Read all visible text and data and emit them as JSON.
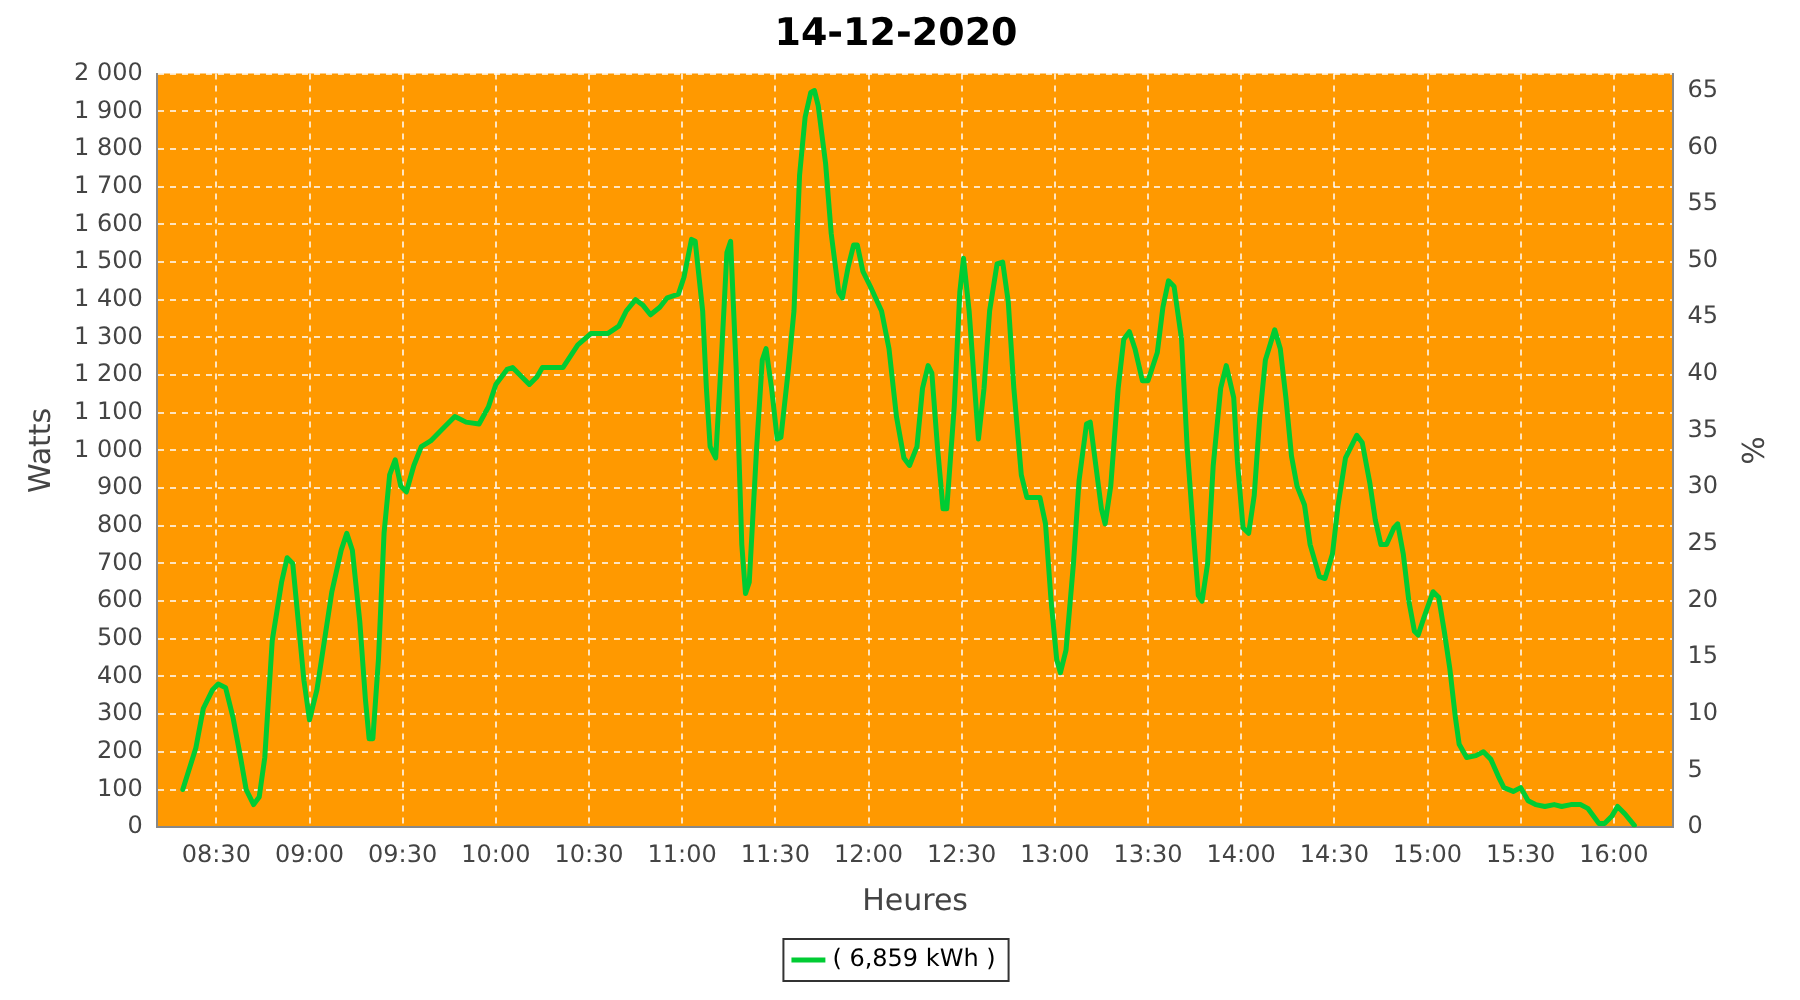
{
  "chart_data": {
    "type": "line",
    "title": "14-12-2020",
    "xlabel": "Heures",
    "ylabel": "Watts",
    "y2label": "%",
    "xlim": [
      8.18,
      16.32
    ],
    "xticks": [
      {
        "value": 8.5,
        "label": "08:30"
      },
      {
        "value": 9,
        "label": "09:00"
      },
      {
        "value": 9.5,
        "label": "09:30"
      },
      {
        "value": 10,
        "label": "10:00"
      },
      {
        "value": 10.5,
        "label": "10:30"
      },
      {
        "value": 11,
        "label": "11:00"
      },
      {
        "value": 11.5,
        "label": "11:30"
      },
      {
        "value": 12,
        "label": "12:00"
      },
      {
        "value": 12.5,
        "label": "12:30"
      },
      {
        "value": 13,
        "label": "13:00"
      },
      {
        "value": 13.5,
        "label": "13:30"
      },
      {
        "value": 14,
        "label": "14:00"
      },
      {
        "value": 14.5,
        "label": "14:30"
      },
      {
        "value": 15,
        "label": "15:00"
      },
      {
        "value": 15.5,
        "label": "15:30"
      },
      {
        "value": 16,
        "label": "16:00"
      }
    ],
    "ylim": [
      0,
      2000
    ],
    "yticks": [
      0,
      100,
      200,
      300,
      400,
      500,
      600,
      700,
      800,
      900,
      {
        "value": 1000,
        "label": "1 000"
      },
      {
        "value": 1100,
        "label": "1 100"
      },
      {
        "value": 1200,
        "label": "1 200"
      },
      {
        "value": 1300,
        "label": "1 300"
      },
      {
        "value": 1400,
        "label": "1 400"
      },
      {
        "value": 1500,
        "label": "1 500"
      },
      {
        "value": 1600,
        "label": "1 600"
      },
      {
        "value": 1700,
        "label": "1 700"
      },
      {
        "value": 1800,
        "label": "1 800"
      },
      {
        "value": 1900,
        "label": "1 900"
      },
      {
        "value": 2000,
        "label": "2 000"
      }
    ],
    "y2lim": [
      0,
      66.5
    ],
    "y2ticks": [
      0,
      5,
      10,
      15,
      20,
      25,
      30,
      35,
      40,
      45,
      50,
      55,
      60,
      65
    ],
    "grid": true,
    "legend": "bottom",
    "marker": "none",
    "line_style": "solid",
    "series": [
      {
        "name": "( 6,859 kWh )",
        "color": "#00cc33",
        "x": [
          8.32,
          8.39,
          8.43,
          8.48,
          8.51,
          8.55,
          8.59,
          8.63,
          8.66,
          8.7,
          8.73,
          8.76,
          8.8,
          8.85,
          8.88,
          8.91,
          8.94,
          8.97,
          9,
          9.04,
          9.08,
          9.12,
          9.17,
          9.2,
          9.23,
          9.27,
          9.3,
          9.32,
          9.34,
          9.37,
          9.4,
          9.43,
          9.46,
          9.49,
          9.52,
          9.56,
          9.6,
          9.65,
          9.72,
          9.78,
          9.84,
          9.91,
          9.96,
          10,
          10.06,
          10.09,
          10.14,
          10.18,
          10.22,
          10.25,
          10.36,
          10.44,
          10.51,
          10.6,
          10.66,
          10.7,
          10.75,
          10.79,
          10.83,
          10.88,
          10.92,
          10.98,
          11.01,
          11.05,
          11.07,
          11.11,
          11.13,
          11.15,
          11.18,
          11.21,
          11.24,
          11.26,
          11.29,
          11.32,
          11.34,
          11.36,
          11.4,
          11.43,
          11.45,
          11.48,
          11.51,
          11.53,
          11.57,
          11.6,
          11.63,
          11.66,
          11.69,
          11.71,
          11.73,
          11.77,
          11.8,
          11.84,
          11.86,
          11.89,
          11.92,
          11.94,
          11.97,
          12.01,
          12.07,
          12.11,
          12.15,
          12.19,
          12.22,
          12.26,
          12.29,
          12.32,
          12.34,
          12.37,
          12.4,
          12.42,
          12.46,
          12.49,
          12.51,
          12.54,
          12.57,
          12.59,
          12.62,
          12.65,
          12.69,
          12.72,
          12.75,
          12.78,
          12.82,
          12.85,
          12.92,
          12.95,
          12.98,
          13.01,
          13.03,
          13.06,
          13.1,
          13.13,
          13.17,
          13.19,
          13.22,
          13.25,
          13.27,
          13.3,
          13.34,
          13.37,
          13.4,
          13.43,
          13.47,
          13.5,
          13.55,
          13.58,
          13.61,
          13.64,
          13.68,
          13.71,
          13.75,
          13.77,
          13.79,
          13.82,
          13.85,
          13.89,
          13.92,
          13.96,
          13.98,
          14.01,
          14.04,
          14.07,
          14.1,
          14.13,
          14.18,
          14.21,
          14.24,
          14.27,
          14.3,
          14.34,
          14.37,
          14.42,
          14.45,
          14.49,
          14.52,
          14.56,
          14.62,
          14.65,
          14.69,
          14.72,
          14.75,
          14.78,
          14.82,
          14.84,
          14.87,
          14.9,
          14.93,
          14.95,
          14.98,
          15.03,
          15.06,
          15.09,
          15.12,
          15.15,
          15.17,
          15.21,
          15.26,
          15.3,
          15.34,
          15.38,
          15.41,
          15.46,
          15.5,
          15.54,
          15.58,
          15.63,
          15.68,
          15.72,
          15.77,
          15.82,
          15.86,
          15.92,
          15.95,
          15.99,
          16.02,
          16.06,
          16.11
        ],
        "values": [
          100,
          210,
          315,
          365,
          380,
          370,
          290,
          185,
          100,
          60,
          80,
          185,
          495,
          650,
          715,
          700,
          545,
          390,
          285,
          365,
          495,
          625,
          735,
          780,
          735,
          545,
          340,
          235,
          235,
          445,
          780,
          935,
          975,
          905,
          890,
          960,
          1010,
          1025,
          1060,
          1090,
          1075,
          1070,
          1115,
          1175,
          1215,
          1220,
          1195,
          1175,
          1195,
          1220,
          1220,
          1280,
          1310,
          1310,
          1330,
          1370,
          1400,
          1385,
          1360,
          1380,
          1405,
          1415,
          1460,
          1560,
          1555,
          1370,
          1165,
          1010,
          980,
          1240,
          1525,
          1555,
          1215,
          750,
          620,
          650,
          1010,
          1240,
          1270,
          1165,
          1030,
          1035,
          1215,
          1370,
          1730,
          1885,
          1950,
          1955,
          1915,
          1760,
          1575,
          1420,
          1405,
          1485,
          1545,
          1545,
          1475,
          1435,
          1370,
          1270,
          1090,
          980,
          960,
          1010,
          1165,
          1225,
          1205,
          1010,
          845,
          845,
          1115,
          1420,
          1510,
          1370,
          1165,
          1030,
          1165,
          1370,
          1495,
          1500,
          1395,
          1165,
          935,
          875,
          875,
          805,
          600,
          445,
          410,
          470,
          700,
          920,
          1070,
          1075,
          960,
          845,
          805,
          905,
          1165,
          1295,
          1315,
          1270,
          1185,
          1185,
          1260,
          1380,
          1450,
          1435,
          1295,
          1010,
          740,
          615,
          600,
          700,
          960,
          1165,
          1225,
          1140,
          970,
          795,
          780,
          880,
          1090,
          1240,
          1320,
          1270,
          1140,
          985,
          905,
          855,
          750,
          665,
          660,
          725,
          855,
          980,
          1040,
          1020,
          915,
          815,
          750,
          750,
          795,
          805,
          725,
          600,
          520,
          510,
          555,
          625,
          610,
          520,
          420,
          290,
          220,
          185,
          190,
          200,
          180,
          135,
          105,
          95,
          105,
          70,
          60,
          55,
          60,
          55,
          60,
          60,
          50,
          10,
          10,
          30,
          55,
          35,
          5
        ]
      }
    ]
  }
}
